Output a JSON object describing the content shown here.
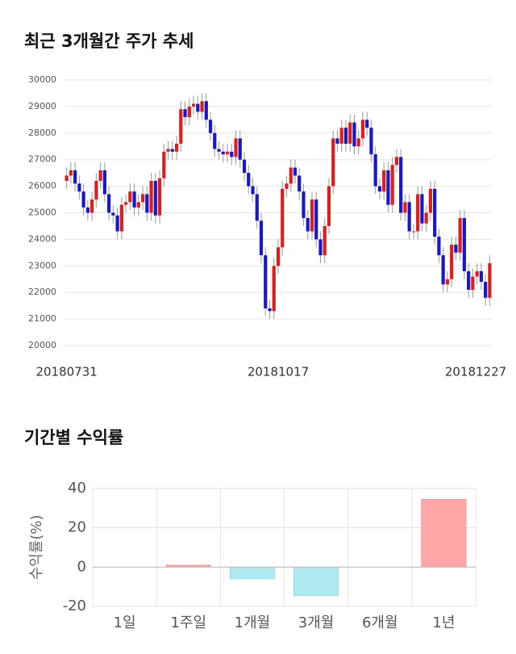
{
  "chart_data": [
    {
      "type": "candlestick",
      "title": "최근 3개월간 주가 추세",
      "categories": [
        "20180731",
        null,
        null,
        null,
        null,
        null,
        null,
        null,
        null,
        null,
        null,
        null,
        null,
        null,
        null,
        null,
        null,
        null,
        null,
        null,
        null,
        null,
        null,
        null,
        null,
        null,
        null,
        null,
        null,
        null,
        null,
        null,
        null,
        null,
        null,
        null,
        null,
        null,
        null,
        null,
        null,
        null,
        null,
        null,
        null,
        null,
        null,
        null,
        null,
        null,
        "20181017",
        null,
        null,
        null,
        null,
        null,
        null,
        null,
        null,
        null,
        null,
        null,
        null,
        null,
        null,
        null,
        null,
        null,
        null,
        null,
        null,
        null,
        null,
        null,
        null,
        null,
        null,
        null,
        null,
        null,
        null,
        null,
        null,
        null,
        null,
        null,
        null,
        null,
        null,
        null,
        null,
        null,
        null,
        null,
        null,
        null,
        null,
        null,
        null,
        null,
        "20181227"
      ],
      "open": [
        26200,
        26400,
        26600,
        26100,
        25800,
        25200,
        25000,
        25500,
        26200,
        26600,
        25700,
        25000,
        24900,
        24300,
        25300,
        25400,
        25800,
        25200,
        25400,
        25700,
        25000,
        26200,
        24900,
        26300,
        27300,
        27400,
        27300,
        27600,
        28900,
        28600,
        29000,
        29100,
        28800,
        29200,
        28500,
        28000,
        27400,
        27300,
        27200,
        27300,
        27100,
        27800,
        27000,
        26500,
        26000,
        25700,
        24700,
        23400,
        21400,
        21300,
        23000,
        23700,
        25900,
        26100,
        26700,
        26400,
        25800,
        24800,
        24300,
        25500,
        24000,
        23400,
        24500,
        26000,
        27800,
        27600,
        28200,
        27600,
        28400,
        27500,
        27800,
        28500,
        28200,
        27200,
        26000,
        25800,
        26600,
        25300,
        26800,
        27100,
        25000,
        25400,
        24300,
        24300,
        25700,
        24600,
        25000,
        25900,
        24100,
        23400,
        22300,
        22500,
        23800,
        23500,
        24800,
        22800,
        22100,
        22600,
        22800,
        22400,
        21800
      ],
      "high": [
        26700,
        26900,
        26900,
        26400,
        26100,
        25500,
        25800,
        26500,
        26900,
        26900,
        26000,
        25300,
        25200,
        25600,
        25700,
        26100,
        26100,
        25700,
        26000,
        26000,
        26500,
        26500,
        26600,
        27600,
        27700,
        27700,
        27900,
        29200,
        29200,
        29300,
        29400,
        29400,
        29500,
        29500,
        28800,
        28300,
        27700,
        27600,
        27600,
        27600,
        28100,
        28100,
        27300,
        26800,
        26300,
        26000,
        25000,
        23700,
        21700,
        23300,
        24000,
        26200,
        26400,
        27000,
        27000,
        26700,
        26100,
        25100,
        25800,
        25800,
        24300,
        24800,
        26300,
        28100,
        28100,
        28500,
        28500,
        28700,
        28700,
        28100,
        28800,
        28800,
        28500,
        27500,
        26300,
        26900,
        26900,
        27100,
        27400,
        27400,
        25700,
        25700,
        24600,
        26000,
        26000,
        25300,
        26200,
        26200,
        24400,
        23700,
        22800,
        24100,
        24100,
        25100,
        25100,
        23100,
        22900,
        23100,
        23100,
        22700,
        23400
      ],
      "low": [
        25900,
        26100,
        25800,
        25500,
        24900,
        24700,
        24700,
        25200,
        25900,
        25400,
        24700,
        24600,
        24000,
        24000,
        25000,
        25100,
        24900,
        24900,
        25100,
        24700,
        24700,
        24600,
        24600,
        26000,
        27000,
        27000,
        27000,
        27300,
        28300,
        28300,
        28700,
        28500,
        28500,
        28200,
        27700,
        27100,
        27000,
        26900,
        26900,
        26800,
        26800,
        26700,
        26200,
        25700,
        25400,
        24400,
        23100,
        21100,
        21000,
        21000,
        22700,
        23400,
        25600,
        25800,
        26100,
        25500,
        24500,
        24000,
        24000,
        23700,
        23100,
        23100,
        24200,
        25700,
        27300,
        27300,
        27300,
        27300,
        27200,
        27200,
        27500,
        27900,
        26900,
        25700,
        25500,
        25500,
        25000,
        25000,
        26500,
        24700,
        24700,
        24000,
        24000,
        24000,
        24300,
        24300,
        24700,
        23800,
        23100,
        22000,
        22000,
        22200,
        23200,
        23200,
        22500,
        21800,
        21800,
        22300,
        22100,
        21500,
        21500
      ],
      "close": [
        26400,
        26600,
        26100,
        25800,
        25200,
        25000,
        25500,
        26200,
        26600,
        25700,
        25000,
        24900,
        24300,
        25300,
        25400,
        25800,
        25200,
        25400,
        25700,
        25000,
        26200,
        24900,
        26300,
        27300,
        27400,
        27300,
        27600,
        28900,
        28600,
        29000,
        29100,
        28800,
        29200,
        28500,
        28000,
        27400,
        27300,
        27200,
        27300,
        27100,
        27800,
        27000,
        26500,
        26000,
        25700,
        24700,
        23400,
        21400,
        21300,
        23000,
        23700,
        25900,
        26100,
        26700,
        26400,
        25800,
        24800,
        24300,
        25500,
        24000,
        23400,
        24500,
        26000,
        27800,
        27600,
        28200,
        27600,
        28400,
        27500,
        27800,
        28500,
        28200,
        27200,
        26000,
        25800,
        26600,
        25300,
        26800,
        27100,
        25000,
        25400,
        24300,
        24300,
        25700,
        24600,
        25000,
        25900,
        24100,
        23400,
        22300,
        22500,
        23800,
        23500,
        24800,
        22800,
        22100,
        22600,
        22800,
        22400,
        21800,
        23100
      ],
      "up_color": "#dc1e1e",
      "down_color": "#1818c8",
      "wick_color": "#999999",
      "ylim": [
        20000,
        30000
      ],
      "yticks": [
        20000,
        21000,
        22000,
        23000,
        24000,
        25000,
        26000,
        27000,
        28000,
        29000,
        30000
      ],
      "grid": true
    },
    {
      "type": "bar",
      "title": "기간별 수익률",
      "y_label": "수익률(%)",
      "categories": [
        "1일",
        "1주일",
        "1개월",
        "3개월",
        "6개월",
        "1년"
      ],
      "values": [
        0,
        1,
        -6,
        -14.5,
        0,
        34.5
      ],
      "positive_color": "#ffa6a6",
      "negative_color": "#b0ebf4",
      "ylim": [
        -20,
        40
      ],
      "yticks": [
        -20,
        0,
        20,
        40
      ],
      "grid": true
    }
  ]
}
